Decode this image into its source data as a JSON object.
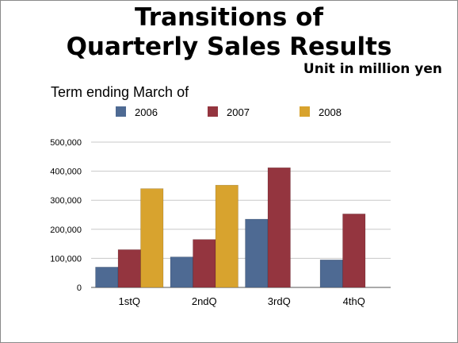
{
  "chart_data": {
    "type": "bar",
    "title": [
      "Transitions of",
      "Quarterly Sales Results"
    ],
    "unit_label": "Unit in million yen",
    "legend_title": "Term ending March of",
    "legend_position": "top",
    "categories": [
      "1stQ",
      "2ndQ",
      "3rdQ",
      "4thQ"
    ],
    "series": [
      {
        "name": "2006",
        "color": "#4e6a93",
        "values": [
          70000,
          105000,
          235000,
          95000
        ]
      },
      {
        "name": "2007",
        "color": "#94353f",
        "values": [
          130000,
          165000,
          412000,
          253000
        ]
      },
      {
        "name": "2008",
        "color": "#d8a32e",
        "values": [
          340000,
          352000,
          null,
          null
        ]
      }
    ],
    "ylim": [
      0,
      500000
    ],
    "yticks": [
      0,
      100000,
      200000,
      300000,
      400000,
      500000
    ],
    "ytick_labels": [
      "0",
      "100,000",
      "200,000",
      "300,000",
      "400,000",
      "500,000"
    ],
    "grid": true,
    "xlabel": "",
    "ylabel": ""
  }
}
